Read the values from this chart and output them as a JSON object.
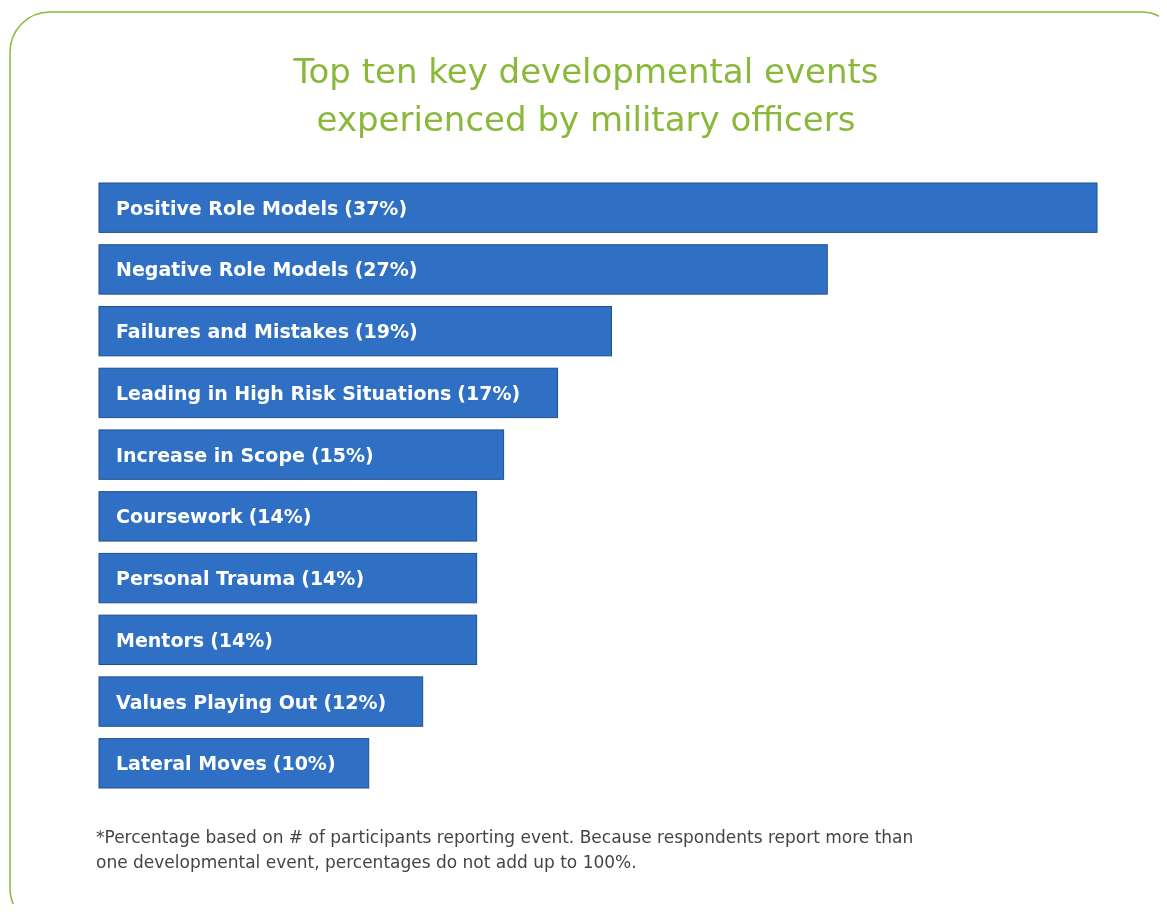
{
  "chart_data": {
    "type": "bar",
    "orientation": "horizontal",
    "title": "Top ten key developmental events experienced by military officers",
    "categories": [
      "Positive Role Models",
      "Negative Role Models",
      "Failures and Mistakes",
      "Leading in High Risk Situations",
      "Increase in Scope",
      "Coursework",
      "Personal Trauma",
      "Mentors",
      "Values Playing Out",
      "Lateral Moves"
    ],
    "values": [
      37,
      27,
      19,
      17,
      15,
      14,
      14,
      14,
      12,
      10
    ],
    "value_labels": [
      "(37%)",
      "(27%)",
      "(19%)",
      "(17%)",
      "(15%)",
      "(14%)",
      "(14%)",
      "(14%)",
      "(12%)",
      "(10%)"
    ],
    "color": "#3070c4",
    "annotations": [
      "*Percentage based on # of participants reporting event. Because respondents report more than one developmental event, percentages do not add up to 100%."
    ]
  }
}
